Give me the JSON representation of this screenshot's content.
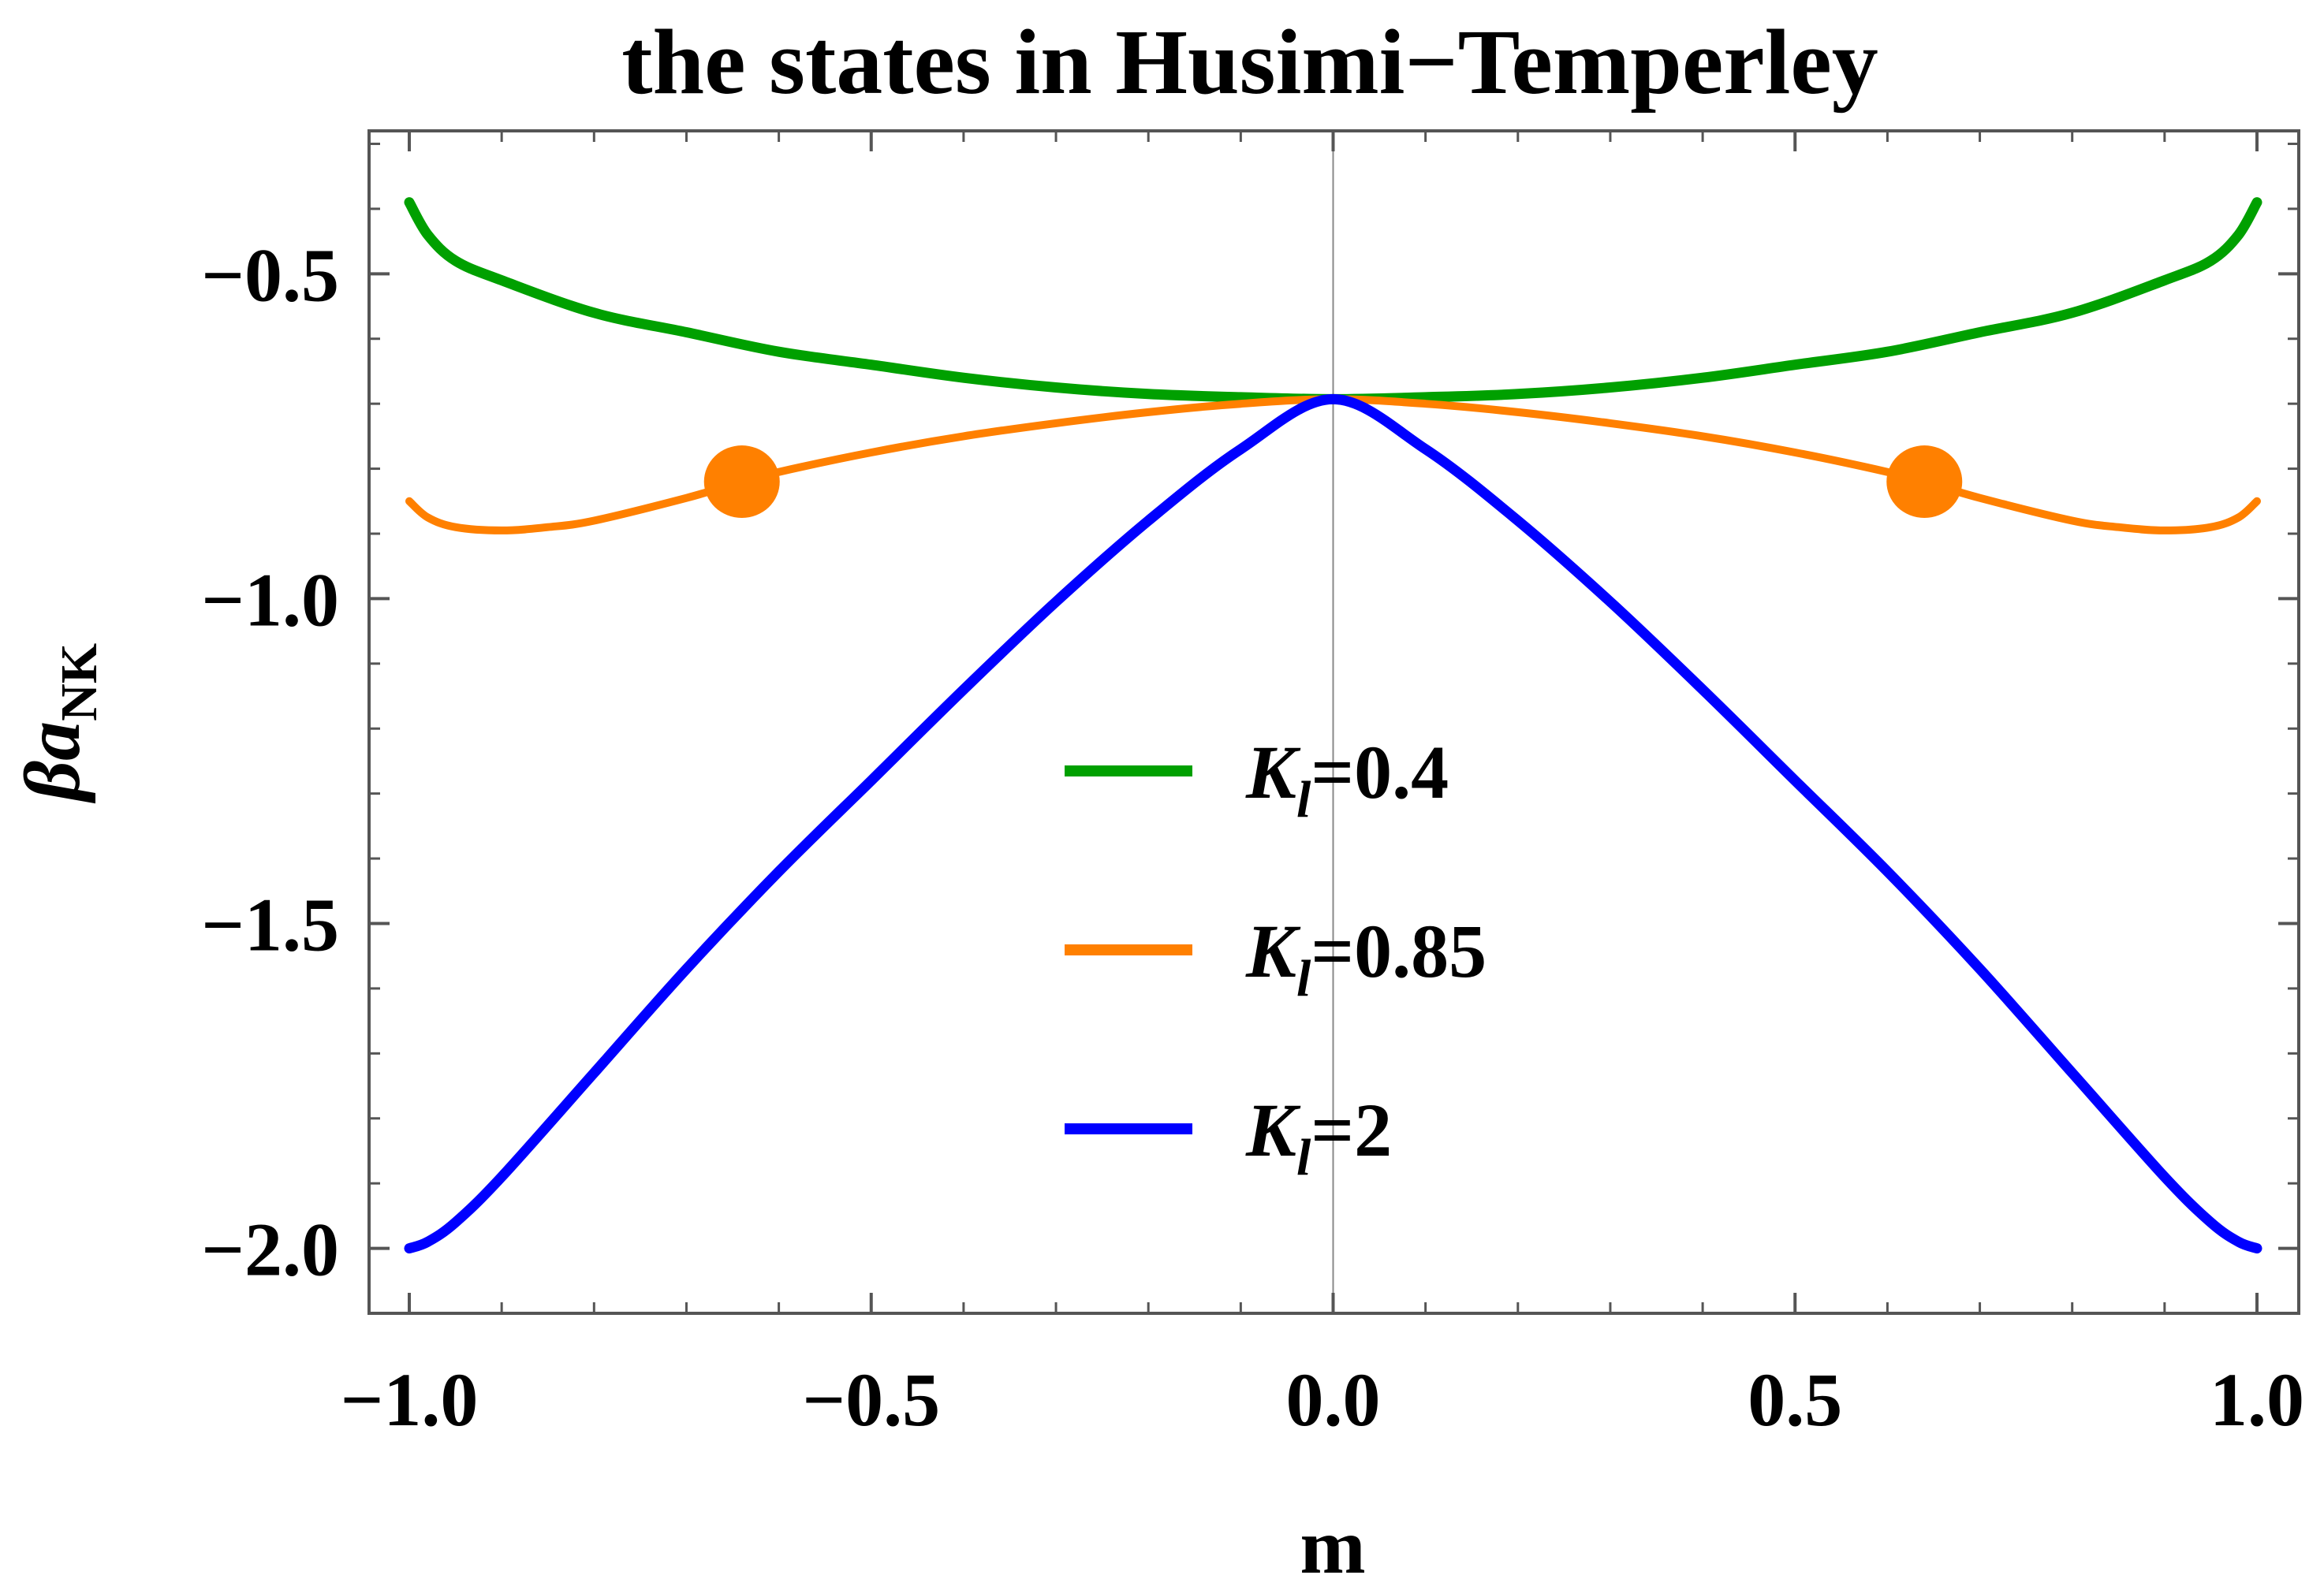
{
  "chart_data": {
    "type": "line",
    "title": "the states in Husimi−Temperley",
    "xlabel": "m",
    "ylabel_main": "βa",
    "ylabel_sub": "NK",
    "xlim": [
      -1.0,
      1.0
    ],
    "ylim": [
      -2.1,
      -0.28
    ],
    "x_ticks": [
      {
        "value": -1.0,
        "label": "−1.0"
      },
      {
        "value": -0.5,
        "label": "−0.5"
      },
      {
        "value": 0.0,
        "label": "0.0"
      },
      {
        "value": 0.5,
        "label": "0.5"
      },
      {
        "value": 1.0,
        "label": "1.0"
      }
    ],
    "y_ticks": [
      {
        "value": -0.5,
        "label": "−0.5"
      },
      {
        "value": -1.0,
        "label": "−1.0"
      },
      {
        "value": -1.5,
        "label": "−1.5"
      },
      {
        "value": -2.0,
        "label": "−2.0"
      }
    ],
    "grid": false,
    "legend_position": "center-right",
    "series": [
      {
        "name": "K_l=0.4",
        "legend_base": "K",
        "legend_sub": "l",
        "legend_value": "=0.4",
        "color": "#00a000",
        "x": [
          -1.0,
          -0.98,
          -0.95,
          -0.9,
          -0.8,
          -0.7,
          -0.6,
          -0.5,
          -0.4,
          -0.3,
          -0.2,
          -0.1,
          0.0,
          0.1,
          0.2,
          0.3,
          0.4,
          0.5,
          0.6,
          0.7,
          0.8,
          0.9,
          0.95,
          0.98,
          1.0
        ],
        "y": [
          -0.39,
          -0.44,
          -0.48,
          -0.51,
          -0.56,
          -0.59,
          -0.62,
          -0.64,
          -0.66,
          -0.675,
          -0.685,
          -0.69,
          -0.693,
          -0.69,
          -0.685,
          -0.675,
          -0.66,
          -0.64,
          -0.62,
          -0.59,
          -0.56,
          -0.51,
          -0.48,
          -0.44,
          -0.39
        ]
      },
      {
        "name": "K_l=0.85",
        "legend_base": "K",
        "legend_sub": "l",
        "legend_value": "=0.85",
        "color": "#ff8000",
        "x": [
          -1.0,
          -0.98,
          -0.95,
          -0.9,
          -0.85,
          -0.8,
          -0.7,
          -0.64,
          -0.6,
          -0.5,
          -0.4,
          -0.3,
          -0.2,
          -0.1,
          0.0,
          0.1,
          0.2,
          0.3,
          0.4,
          0.5,
          0.6,
          0.64,
          0.7,
          0.8,
          0.85,
          0.9,
          0.95,
          0.98,
          1.0
        ],
        "y": [
          -0.85,
          -0.875,
          -0.89,
          -0.895,
          -0.89,
          -0.88,
          -0.845,
          -0.82,
          -0.805,
          -0.775,
          -0.75,
          -0.73,
          -0.713,
          -0.7,
          -0.693,
          -0.7,
          -0.713,
          -0.73,
          -0.75,
          -0.775,
          -0.805,
          -0.82,
          -0.845,
          -0.88,
          -0.89,
          -0.895,
          -0.89,
          -0.875,
          -0.85
        ]
      },
      {
        "name": "K_l=2",
        "legend_base": "K",
        "legend_sub": "l",
        "legend_value": "=2",
        "color": "#0000ff",
        "x": [
          -1.0,
          -0.98,
          -0.95,
          -0.9,
          -0.8,
          -0.7,
          -0.6,
          -0.5,
          -0.4,
          -0.3,
          -0.2,
          -0.1,
          0.0,
          0.1,
          0.2,
          0.3,
          0.4,
          0.5,
          0.6,
          0.7,
          0.8,
          0.9,
          0.95,
          0.98,
          1.0
        ],
        "y": [
          -2.0,
          -1.99,
          -1.96,
          -1.89,
          -1.73,
          -1.57,
          -1.42,
          -1.28,
          -1.14,
          -1.005,
          -0.88,
          -0.77,
          -0.693,
          -0.77,
          -0.88,
          -1.005,
          -1.14,
          -1.28,
          -1.42,
          -1.57,
          -1.73,
          -1.89,
          -1.96,
          -1.99,
          -2.0
        ]
      }
    ],
    "markers": [
      {
        "x": -0.64,
        "y": -0.82,
        "color": "#ff8000"
      },
      {
        "x": 0.64,
        "y": -0.82,
        "color": "#ff8000"
      }
    ]
  }
}
